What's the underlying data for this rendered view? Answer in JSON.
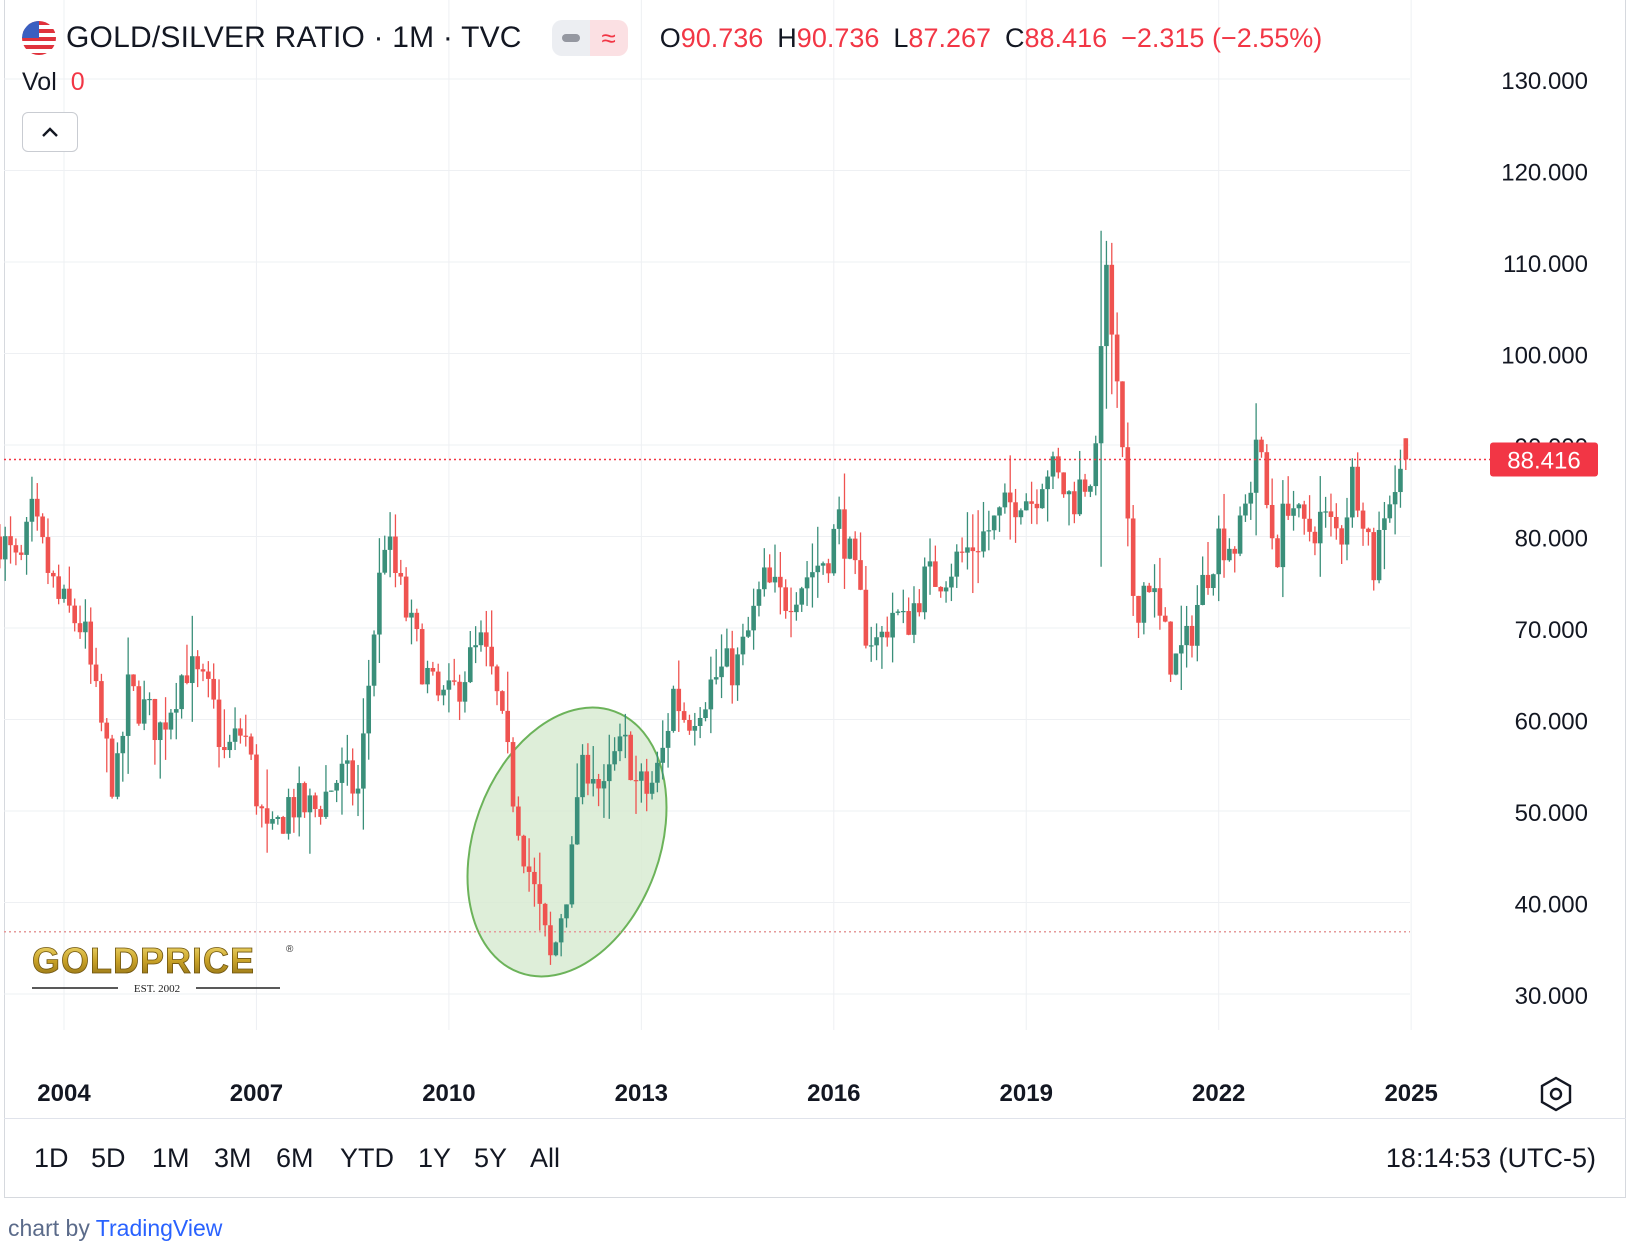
{
  "header": {
    "title": "GOLD/SILVER RATIO · 1M · TVC",
    "ohlc": [
      {
        "k": "O",
        "v": "90.736"
      },
      {
        "k": "H",
        "v": "90.736"
      },
      {
        "k": "L",
        "v": "87.267"
      },
      {
        "k": "C",
        "v": "88.416"
      }
    ],
    "change": "−2.315 (−2.55%)"
  },
  "vol": {
    "label": "Vol",
    "value": "0"
  },
  "range_buttons": [
    "1D",
    "5D",
    "1M",
    "3M",
    "6M",
    "YTD",
    "1Y",
    "5Y",
    "All"
  ],
  "clock": "18:14:53 (UTC-5)",
  "attribution": {
    "prefix": "chart by ",
    "brand": "TradingView"
  },
  "logo": {
    "text": "GOLDPRICE",
    "sub": "EST. 2002"
  },
  "icons": {
    "flag": "us-flag-icon",
    "collapse": "chevron-up-icon",
    "settings": "settings-icon"
  },
  "colors": {
    "up": "#26a69a",
    "up_body": "#3a8f7a",
    "down": "#ef5350",
    "price_line": "#f23645",
    "ellipse_fill": "#d6ead0",
    "ellipse_stroke": "#6cb35a"
  },
  "chart_data": {
    "type": "candlestick",
    "interval": "1M",
    "ylim": [
      22,
      132
    ],
    "yticks": [
      "30.000",
      "40.000",
      "50.000",
      "60.000",
      "70.000",
      "80.000",
      "90.000",
      "100.000",
      "110.000",
      "120.000",
      "130.000"
    ],
    "xticks": [
      "2004",
      "2007",
      "2010",
      "2013",
      "2016",
      "2019",
      "2022",
      "2025"
    ],
    "last_price": "88.416",
    "reference_level": 36.8,
    "highlight": "ellipse around the 2011 low (≈32) and rebound into 2012",
    "anchors": [
      [
        2003.0,
        80
      ],
      [
        2003.3,
        76
      ],
      [
        2003.5,
        82
      ],
      [
        2003.9,
        73
      ],
      [
        2004.3,
        70
      ],
      [
        2004.5,
        62
      ],
      [
        2004.8,
        52
      ],
      [
        2005.0,
        63
      ],
      [
        2005.5,
        59
      ],
      [
        2005.9,
        66
      ],
      [
        2006.3,
        62
      ],
      [
        2006.5,
        56
      ],
      [
        2006.8,
        59
      ],
      [
        2007.0,
        52
      ],
      [
        2007.2,
        46
      ],
      [
        2007.5,
        51
      ],
      [
        2007.9,
        50
      ],
      [
        2008.3,
        54
      ],
      [
        2008.6,
        52
      ],
      [
        2008.8,
        68
      ],
      [
        2009.0,
        80
      ],
      [
        2009.2,
        75
      ],
      [
        2009.4,
        70
      ],
      [
        2009.6,
        66
      ],
      [
        2009.8,
        62
      ],
      [
        2010.0,
        62
      ],
      [
        2010.3,
        66
      ],
      [
        2010.5,
        68
      ],
      [
        2010.7,
        64
      ],
      [
        2010.9,
        56
      ],
      [
        2011.0,
        52
      ],
      [
        2011.2,
        45
      ],
      [
        2011.3,
        42
      ],
      [
        2011.5,
        36
      ],
      [
        2011.6,
        33
      ],
      [
        2011.8,
        41
      ],
      [
        2011.9,
        43
      ],
      [
        2012.0,
        52
      ],
      [
        2012.2,
        56
      ],
      [
        2012.4,
        51
      ],
      [
        2012.6,
        56
      ],
      [
        2012.8,
        57
      ],
      [
        2012.9,
        53
      ],
      [
        2013.1,
        52
      ],
      [
        2013.3,
        55
      ],
      [
        2013.5,
        63
      ],
      [
        2013.7,
        60
      ],
      [
        2013.9,
        62
      ],
      [
        2014.2,
        65
      ],
      [
        2014.5,
        66
      ],
      [
        2014.7,
        70
      ],
      [
        2014.9,
        75
      ],
      [
        2015.2,
        73
      ],
      [
        2015.6,
        76
      ],
      [
        2015.9,
        78
      ],
      [
        2016.1,
        82
      ],
      [
        2016.3,
        76
      ],
      [
        2016.5,
        70
      ],
      [
        2016.7,
        68
      ],
      [
        2016.9,
        72
      ],
      [
        2017.1,
        70
      ],
      [
        2017.4,
        75
      ],
      [
        2017.7,
        76
      ],
      [
        2018.0,
        78
      ],
      [
        2018.3,
        80
      ],
      [
        2018.6,
        82
      ],
      [
        2018.9,
        85
      ],
      [
        2019.1,
        84
      ],
      [
        2019.3,
        88
      ],
      [
        2019.5,
        86
      ],
      [
        2019.7,
        84
      ],
      [
        2019.9,
        86
      ],
      [
        2020.1,
        88
      ],
      [
        2020.2,
        110
      ],
      [
        2020.3,
        105
      ],
      [
        2020.4,
        97
      ],
      [
        2020.5,
        88
      ],
      [
        2020.6,
        78
      ],
      [
        2020.7,
        72
      ],
      [
        2020.9,
        76
      ],
      [
        2021.1,
        70
      ],
      [
        2021.3,
        66
      ],
      [
        2021.5,
        68
      ],
      [
        2021.8,
        76
      ],
      [
        2022.0,
        80
      ],
      [
        2022.3,
        79
      ],
      [
        2022.5,
        86
      ],
      [
        2022.6,
        92
      ],
      [
        2022.7,
        85
      ],
      [
        2022.9,
        78
      ],
      [
        2023.1,
        85
      ],
      [
        2023.3,
        80
      ],
      [
        2023.6,
        82
      ],
      [
        2023.9,
        80
      ],
      [
        2024.1,
        87
      ],
      [
        2024.3,
        82
      ],
      [
        2024.4,
        76
      ],
      [
        2024.6,
        84
      ],
      [
        2024.8,
        86
      ],
      [
        2024.95,
        88.4
      ]
    ],
    "last_candle": {
      "open": 90.736,
      "high": 90.736,
      "low": 87.267,
      "close": 88.416
    }
  }
}
